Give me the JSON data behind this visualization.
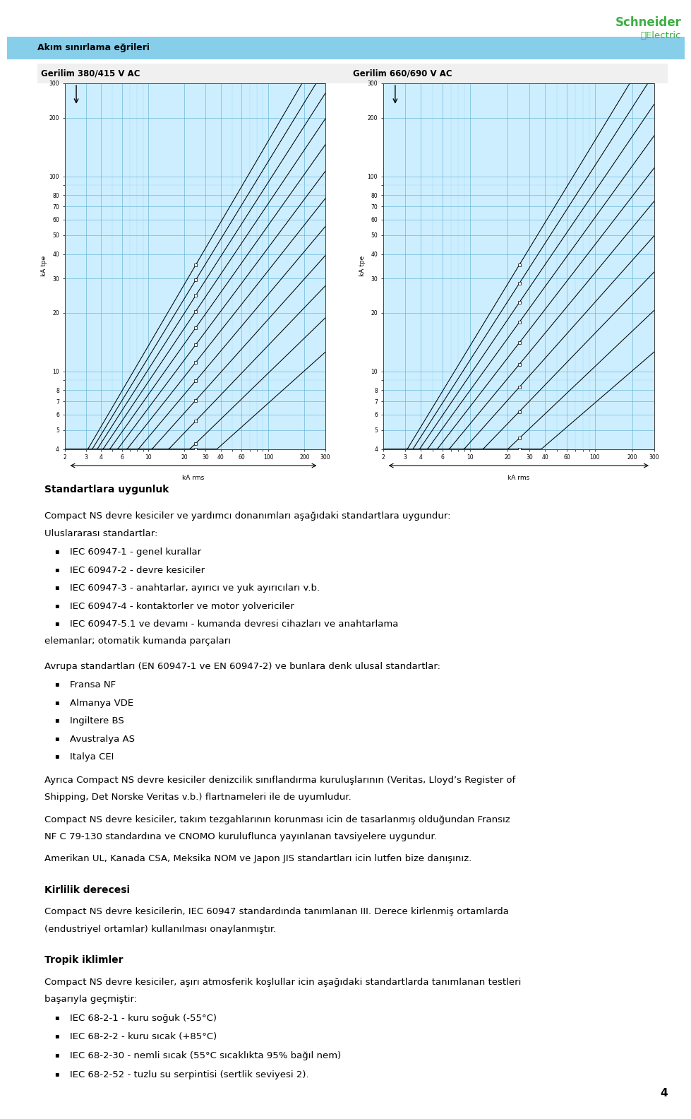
{
  "page_bg": "#ffffff",
  "header_bar_color": "#87CEEB",
  "header_bar_text": "Akım sınırlama eğrileri",
  "chart_left_title": "Gerilim 380/415 V AC",
  "chart_right_title": "Gerilim 660/690 V AC",
  "chart_bg": "#cceeff",
  "chart_grid_major": "#4da6cc",
  "chart_grid_minor": "#88ccee",
  "schneider_green": "#3CB043",
  "section_title_1": "Standartlara uygunluk",
  "para1": "Compact NS devre kesiciler ve yardımcı donanımları aşağıdaki standartlara uygundur:",
  "para1b": "Uluslararası standartlar:",
  "bullets_intl": [
    "IEC 60947-1 - genel kurallar",
    "IEC 60947-2 - devre kesiciler",
    "IEC 60947-3 - anahtarlar, ayırıcı ve yuk ayırıcıları v.b.",
    "IEC 60947-4 - kontaktorler ve motor yolvericiler",
    "IEC 60947-5.1 ve devamı - kumanda devresi cihazları ve anahtarlama\n    elemanlar; otomatik kumanda parçaları"
  ],
  "para2": "Avrupa standartları (EN 60947-1 ve EN 60947-2) ve bunlara denk ulusal standartlar:",
  "bullets_eu": [
    "Fransa NF",
    "Almanya VDE",
    "Ingiltere BS",
    "Avustralya AS",
    "Italya CEI"
  ],
  "para3a": "Ayrıca Compact NS devre kesiciler denizcilik sınıflandırma kuruluşlarının (Veritas, Lloyd’s Register of",
  "para3b": "Shipping, Det Norske Veritas v.b.) flartnameleri ile de uyumludur.",
  "para4a": "Compact NS devre kesiciler, takım tezgahlarının korunması icin de tasarlanmış olduğundan Fransız",
  "para4b": "NF C 79-130 standardına ve CNOMO kuruluflunca yayınlanan tavsiyelere uygundur.",
  "para5": "Amerikan UL, Kanada CSA, Meksika NOM ve Japon JIS standartları icin lutfen bize danışınız.",
  "section_title_2": "Kirlilik derecesi",
  "para6a": "Compact NS devre kesicilerin, IEC 60947 standardında tanımlanan III. Derece kirlenmiş ortamlarda",
  "para6b": "(endustriyel ortamlar) kullanılması onaylanmıştır.",
  "section_title_3": "Tropik iklimler",
  "para7a": "Compact NS devre kesiciler, aşırı atmosferik koşlullar icin aşağıdaki standartlarda tanımlanan testleri",
  "para7b": "başarıyla geçmiştir:",
  "bullets_tropic": [
    "IEC 68-2-1 - kuru soğuk (-55°C)",
    "IEC 68-2-2 - kuru sıcak (+85°C)",
    "IEC 68-2-30 - nemli sıcak (55°C sıcaklıkta 95% bağıl nem)",
    "IEC 68-2-52 - tuzlu su serpintisi (sertlik seviyesi 2)."
  ],
  "page_number": "4",
  "y_labels": [
    "300",
    "200",
    "100",
    "80",
    "70",
    "60",
    "50",
    "40",
    "30",
    "20",
    "10",
    "8",
    "7",
    "6",
    "5",
    "4"
  ],
  "x_labels": [
    "2",
    "3",
    "4",
    "6",
    "10",
    "20",
    "30",
    "40",
    "60",
    "100",
    "200",
    "300"
  ],
  "font_size_body": 9.5,
  "font_size_section": 10,
  "font_size_header_bar": 9
}
